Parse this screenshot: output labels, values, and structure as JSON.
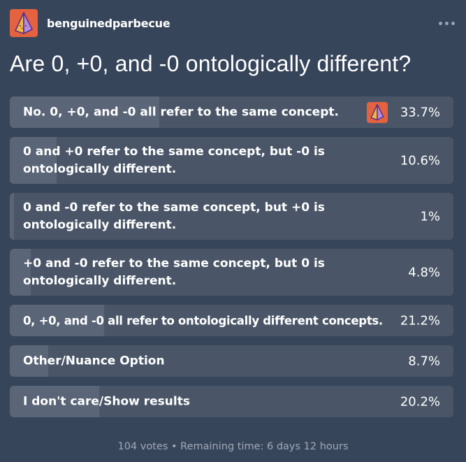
{
  "post": {
    "username": "benguinedparbecue",
    "avatar_icon": "pyramid-avatar-icon",
    "more_icon": "more-options-icon",
    "question": "Are 0, +0, and -0 ontologically different?"
  },
  "poll": {
    "options": [
      {
        "label": "No. 0, +0, and -0 all refer to the same concept.",
        "percent_label": "33.7%",
        "percent": 33.7,
        "voted": true
      },
      {
        "label": "0 and +0 refer to the same concept, but -0 is ontologically different.",
        "percent_label": "10.6%",
        "percent": 10.6,
        "voted": false
      },
      {
        "label": "0 and -0 refer to the same concept, but +0 is ontologically different.",
        "percent_label": "1%",
        "percent": 1,
        "voted": false
      },
      {
        "label": "+0 and -0 refer to the same concept, but 0 is ontologically different.",
        "percent_label": "4.8%",
        "percent": 4.8,
        "voted": false
      },
      {
        "label": "0, +0, and -0 all refer to ontologically different concepts.",
        "percent_label": "21.2%",
        "percent": 21.2,
        "voted": false
      },
      {
        "label": "Other/Nuance Option",
        "percent_label": "8.7%",
        "percent": 8.7,
        "voted": false
      },
      {
        "label": "I don't care/Show results",
        "percent_label": "20.2%",
        "percent": 20.2,
        "voted": false
      }
    ],
    "footer": "104 votes • Remaining time: 6 days 12 hours"
  },
  "colors": {
    "background": "#37455b",
    "option_bg": "#4a5668",
    "option_fill": "#5a6577",
    "avatar_accent": "#e4623f"
  }
}
